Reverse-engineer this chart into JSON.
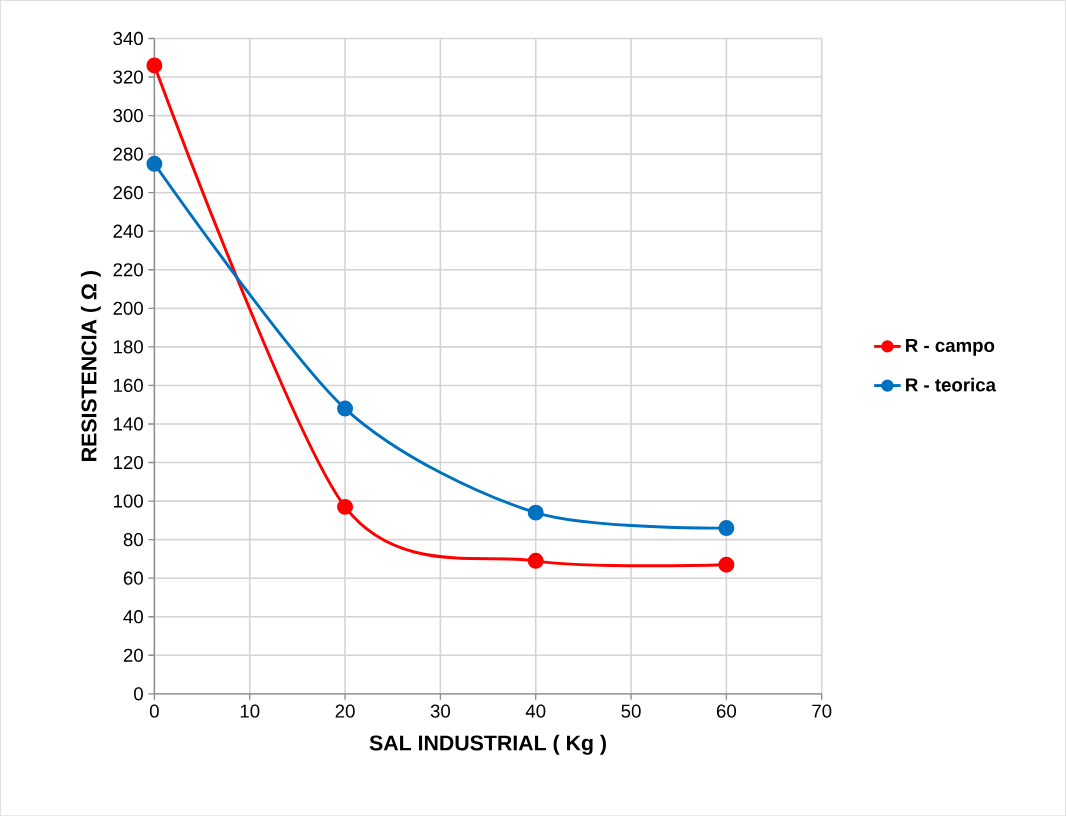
{
  "chart_data": {
    "type": "line",
    "xlabel": "SAL INDUSTRIAL  ( Kg )",
    "ylabel": "RESISTENCIA  ( Ω )",
    "x": [
      0,
      20,
      40,
      60
    ],
    "series": [
      {
        "name": "R - campo",
        "color": "#ff0000",
        "values": [
          326,
          97,
          69,
          67
        ]
      },
      {
        "name": "R - teorica",
        "color": "#0070c0",
        "values": [
          275,
          148,
          94,
          86
        ]
      }
    ],
    "xlim": [
      0,
      70
    ],
    "xticks": [
      0,
      10,
      20,
      30,
      40,
      50,
      60,
      70
    ],
    "ylim": [
      0,
      340
    ],
    "yticks": [
      0,
      20,
      40,
      60,
      80,
      100,
      120,
      140,
      160,
      180,
      200,
      220,
      240,
      260,
      280,
      300,
      320,
      340
    ],
    "grid": true,
    "legend": "right",
    "marker": "circle",
    "line_style": "solid"
  }
}
